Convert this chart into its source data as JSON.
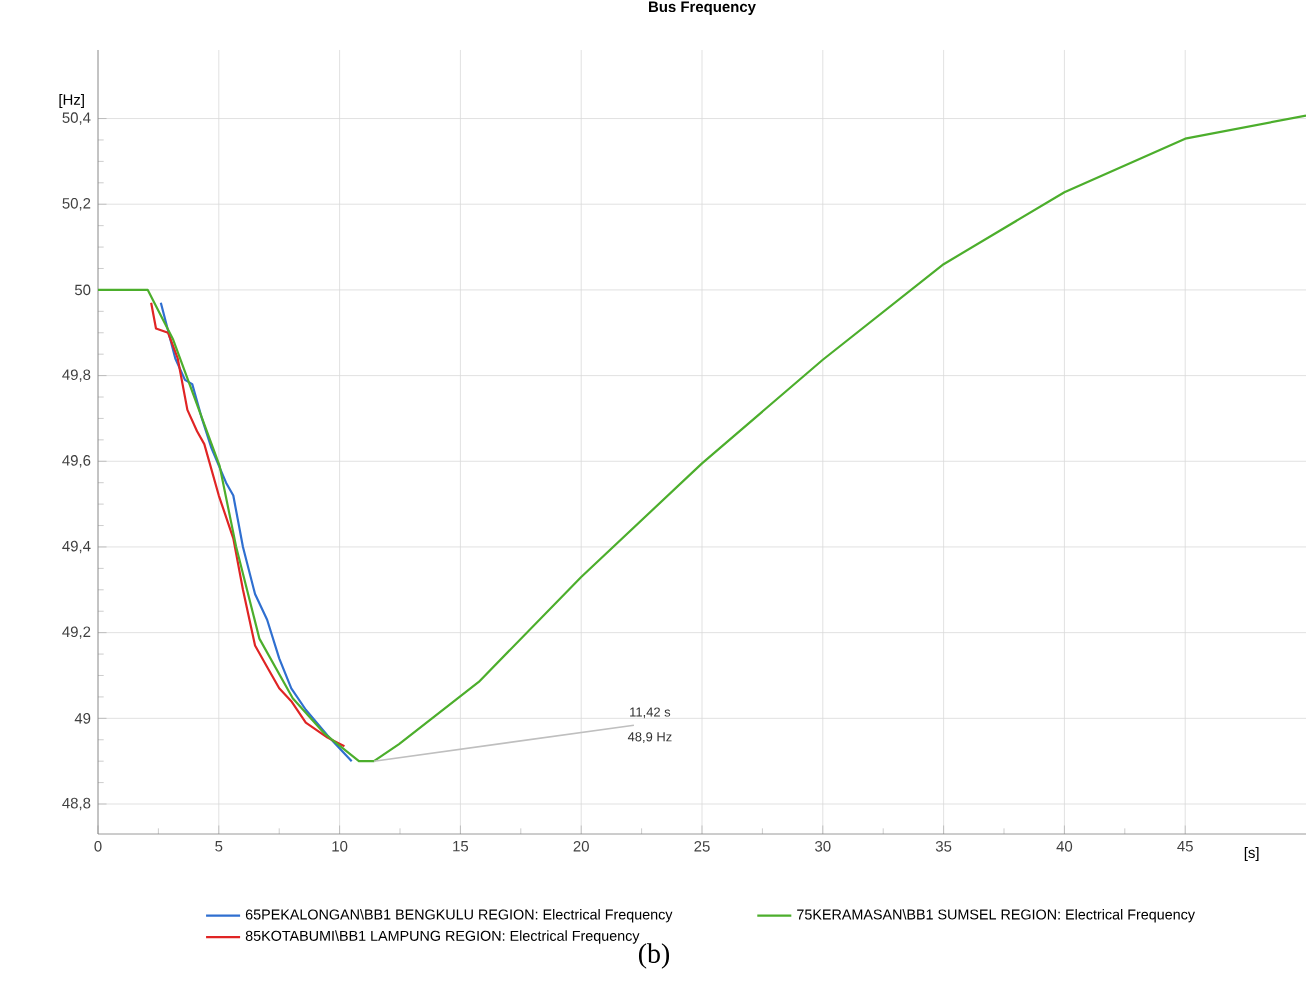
{
  "chart_data": {
    "type": "line",
    "title": "Bus Frequency",
    "xlabel": "[s]",
    "ylabel": "[Hz]",
    "xlim": [
      0,
      50
    ],
    "xticks": [
      0,
      5,
      10,
      15,
      20,
      25,
      30,
      35,
      40,
      45
    ],
    "ylim": [
      48.73,
      50.56
    ],
    "yticks": [
      {
        "value": 48.8,
        "label": "48,8"
      },
      49,
      {
        "value": 49.2,
        "label": "49,2"
      },
      {
        "value": 49.4,
        "label": "49,4"
      },
      {
        "value": 49.6,
        "label": "49,6"
      },
      {
        "value": 49.8,
        "label": "49,8"
      },
      50,
      {
        "value": 50.2,
        "label": "50,2"
      },
      {
        "value": 50.4,
        "label": "50,4"
      }
    ],
    "grid": true,
    "legend": "bottom",
    "marker": "none",
    "line_style": "solid",
    "series": [
      {
        "name": "65PEKALONGAN\\BB1 BENGKULU REGION: Electrical Frequency",
        "color": "#2f6fd0",
        "x": [
          2.6,
          3.2,
          3.6,
          3.9,
          4.3,
          4.7,
          5.3,
          5.6,
          6.0,
          6.5,
          7.0,
          7.5,
          8.0,
          8.6,
          9.5,
          10.5
        ],
        "values": [
          49.97,
          49.84,
          49.79,
          49.78,
          49.7,
          49.63,
          49.55,
          49.52,
          49.4,
          49.29,
          49.23,
          49.14,
          49.07,
          49.02,
          48.96,
          48.9
        ]
      },
      {
        "name": "85KOTABUMI\\BB1 LAMPUNG REGION: Electrical Frequency",
        "color": "#e02424",
        "x": [
          2.2,
          2.4,
          2.9,
          3.3,
          3.7,
          4.1,
          4.4,
          5.0,
          5.6,
          6.0,
          6.5,
          7.0,
          7.5,
          8.0,
          8.6,
          9.5,
          10.2
        ],
        "values": [
          49.97,
          49.91,
          49.9,
          49.84,
          49.72,
          49.67,
          49.64,
          49.52,
          49.42,
          49.3,
          49.17,
          49.12,
          49.07,
          49.04,
          48.99,
          48.955,
          48.935
        ]
      },
      {
        "name": "75KERAMASAN\\BB1 SUMSEL REGION: Electrical Frequency",
        "color": "#4cae2c",
        "x": [
          0,
          2.06,
          3.11,
          5.03,
          5.72,
          6.68,
          8.06,
          9.4,
          10.8,
          11.42,
          12.46,
          15.76,
          20,
          25,
          30,
          35,
          40,
          45,
          50
        ],
        "values": [
          50,
          50,
          49.884,
          49.59,
          49.4,
          49.186,
          49.047,
          48.963,
          48.9,
          48.9,
          48.94,
          49.085,
          49.33,
          49.595,
          49.837,
          50.06,
          50.228,
          50.353,
          50.407
        ]
      }
    ],
    "annotations": [
      {
        "text": "11,42 s",
        "x": 11.42,
        "y": 48.9
      },
      {
        "text": "48,9 Hz",
        "x": 11.42,
        "y": 48.9
      },
      "(b)"
    ]
  }
}
